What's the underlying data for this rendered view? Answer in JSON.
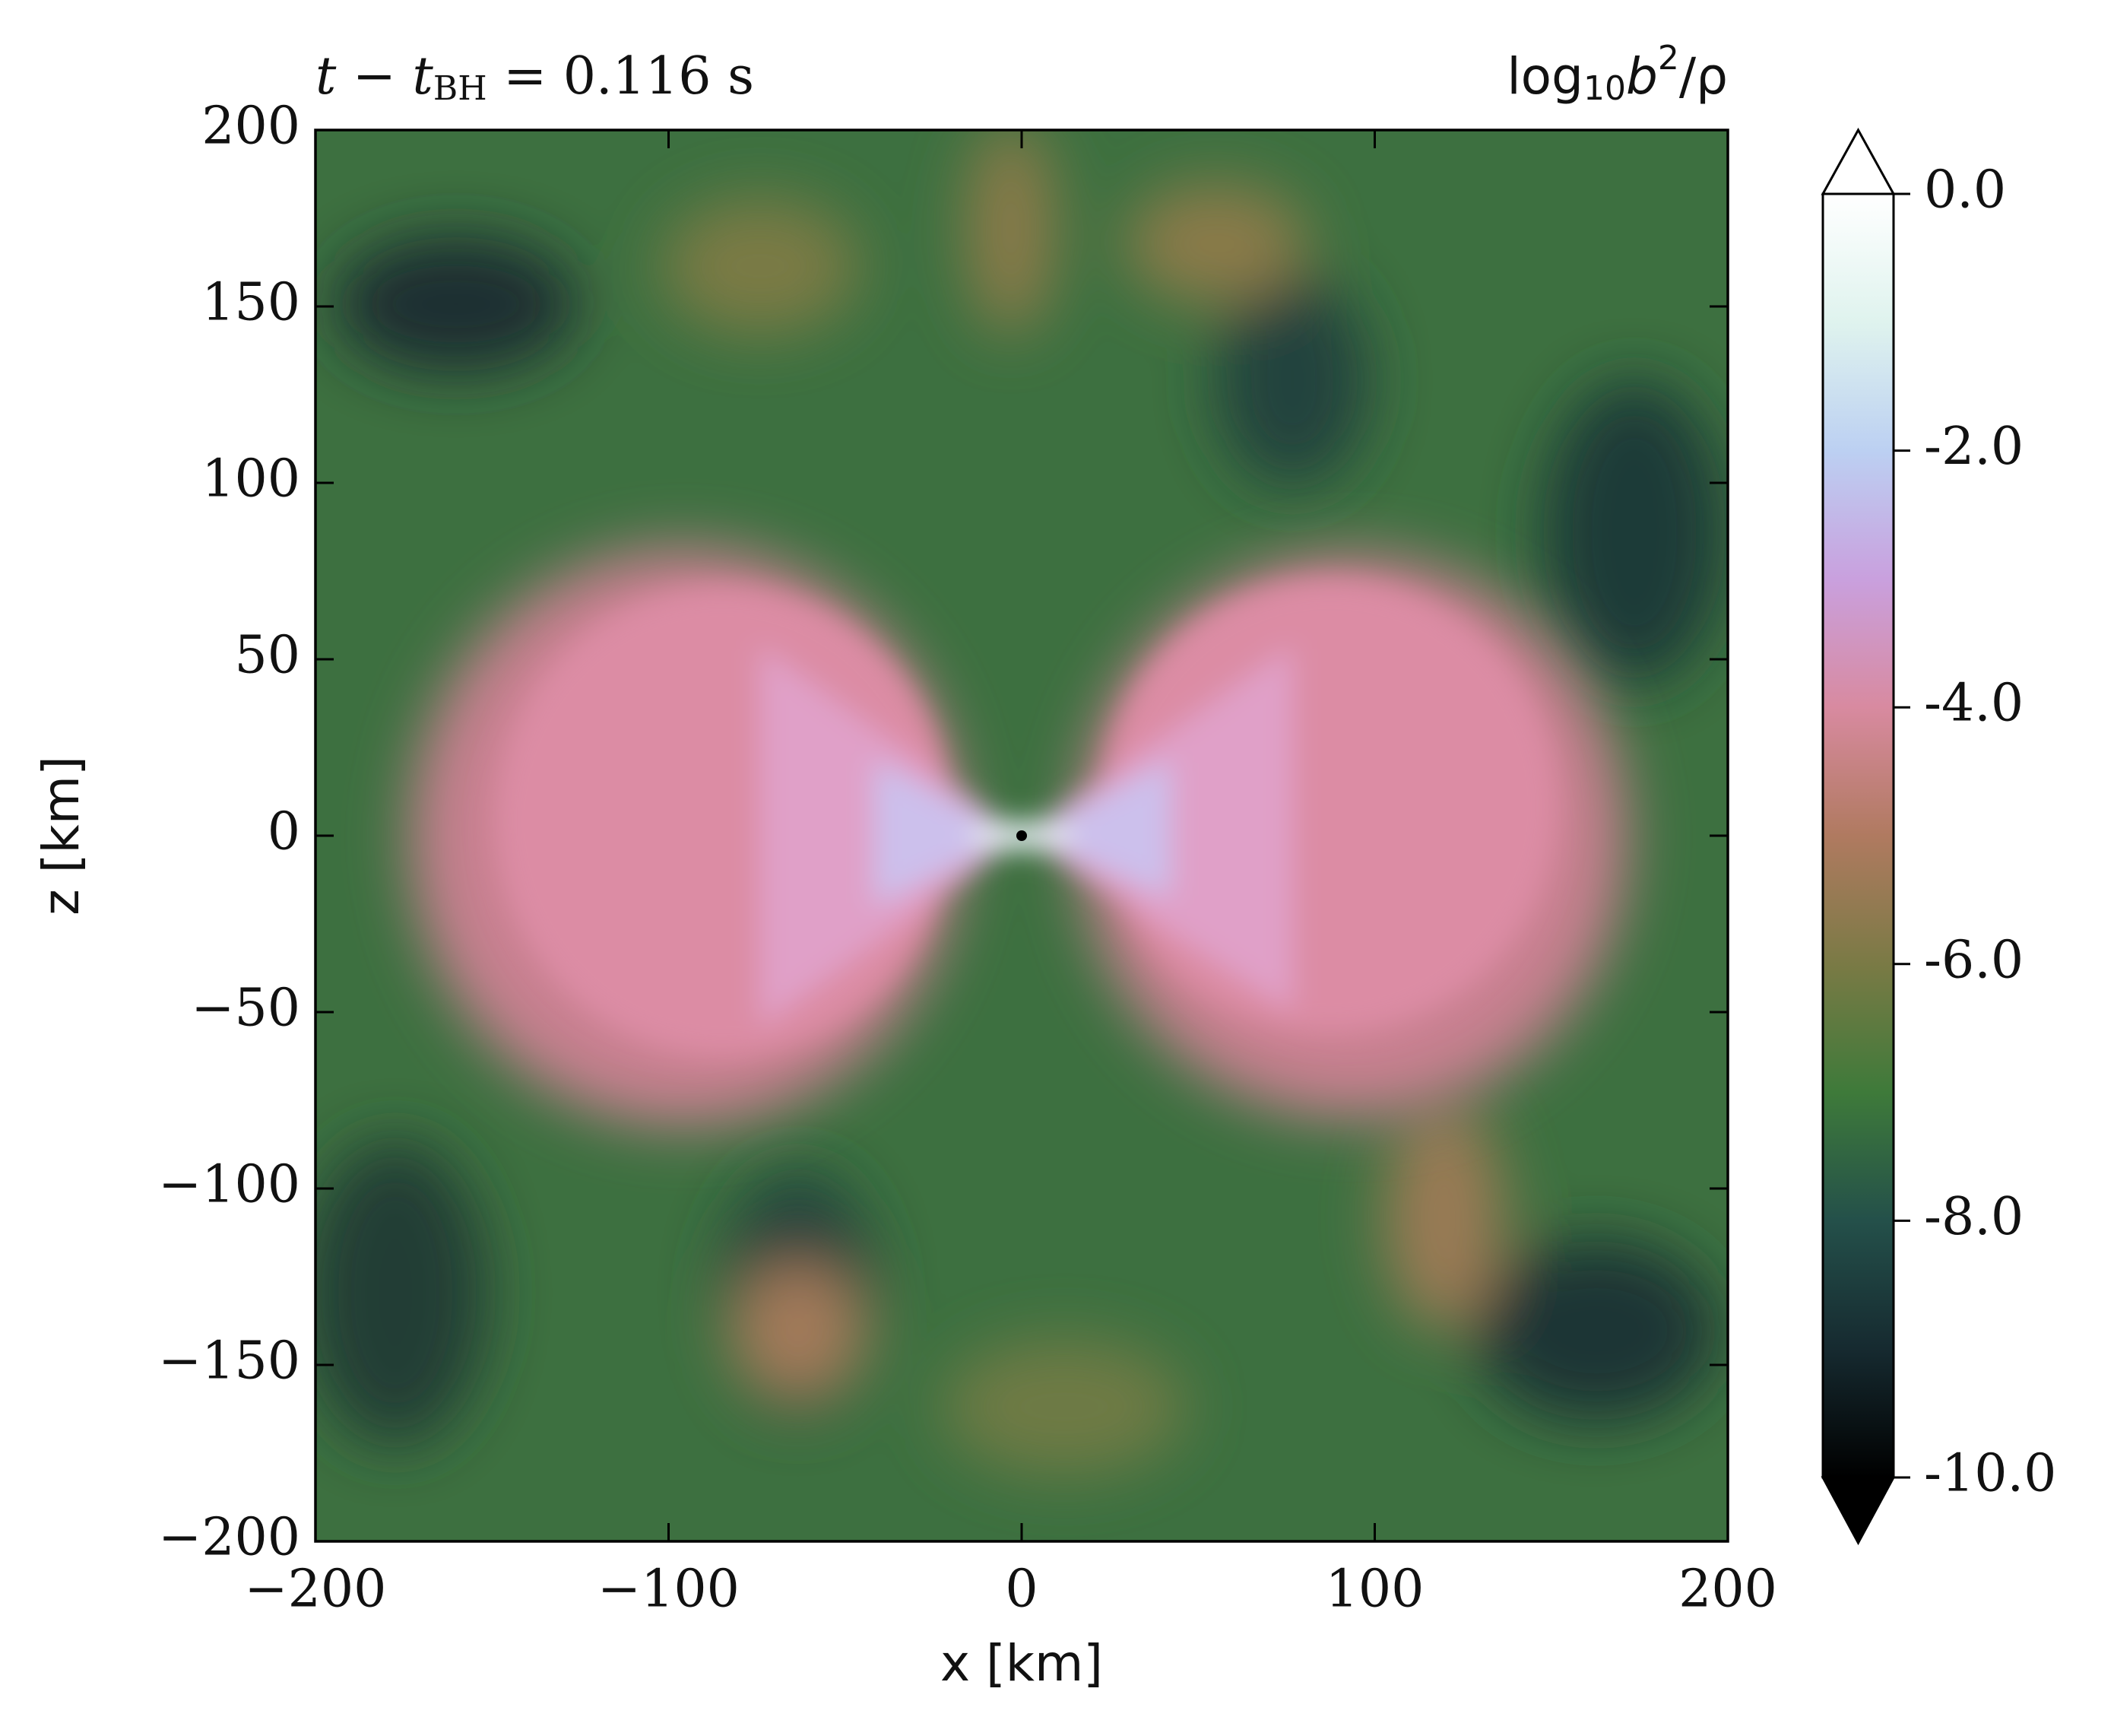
{
  "chart_data": {
    "type": "heatmap",
    "title_left": [
      "t − t",
      "BH",
      " = 0.116 s"
    ],
    "colorbar_label": [
      "log",
      "10",
      "b",
      "2",
      "/ρ"
    ],
    "xlabel": "x [km]",
    "ylabel": "z [km]",
    "xlim": [
      -200,
      200
    ],
    "ylim": [
      -200,
      200
    ],
    "xticks": [
      {
        "value": -200,
        "label": "−200"
      },
      {
        "value": -100,
        "label": "−100"
      },
      0,
      100,
      200
    ],
    "yticks": [
      {
        "value": -200,
        "label": "−200"
      },
      {
        "value": -150,
        "label": "−150"
      },
      {
        "value": -100,
        "label": "−100"
      },
      {
        "value": -50,
        "label": "−50"
      },
      0,
      50,
      100,
      150,
      200
    ],
    "clim": [
      -10,
      0
    ],
    "cticks": [
      {
        "value": -10,
        "label": "-10.0"
      },
      {
        "value": -8,
        "label": "-8.0"
      },
      {
        "value": -6,
        "label": "-6.0"
      },
      {
        "value": -4,
        "label": "-4.0"
      },
      {
        "value": -2,
        "label": "-2.0"
      },
      {
        "value": 0,
        "label": "0.0"
      }
    ],
    "colormap": [
      "#000000",
      "#162a30",
      "#24504a",
      "#3e7a3a",
      "#7a7a45",
      "#b07a60",
      "#d88aa0",
      "#c9a0de",
      "#bcd0f2",
      "#dff3ee",
      "#ffffff"
    ],
    "colorbar_extend": "both",
    "grid": false
  }
}
